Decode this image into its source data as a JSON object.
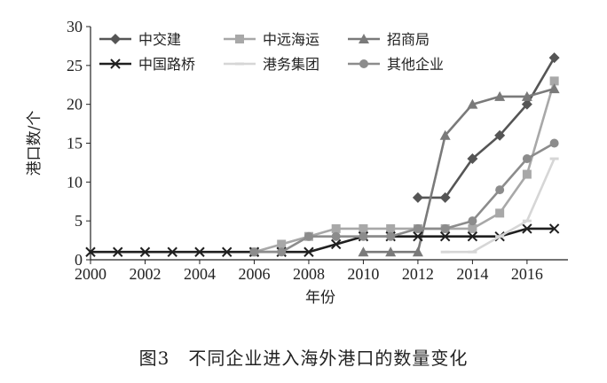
{
  "caption": "图3　不同企业进入海外港口的数量变化",
  "chart_data": {
    "type": "line",
    "xlabel": "年份",
    "ylabel": "港口数/个",
    "xlim": [
      2000,
      2017.5
    ],
    "ylim": [
      0,
      30
    ],
    "xticks": [
      2000,
      2002,
      2004,
      2006,
      2008,
      2010,
      2012,
      2014,
      2016
    ],
    "yticks": [
      0,
      5,
      10,
      15,
      20,
      25,
      30
    ],
    "grid": false,
    "legend_position": "top-left",
    "series": [
      {
        "name": "中交建",
        "color": "#555555",
        "marker": "diamond",
        "points": [
          [
            2012,
            8
          ],
          [
            2013,
            8
          ],
          [
            2014,
            13
          ],
          [
            2015,
            16
          ],
          [
            2016,
            20
          ],
          [
            2017,
            26
          ]
        ]
      },
      {
        "name": "中远海运",
        "color": "#a8a8a8",
        "marker": "square",
        "points": [
          [
            2006,
            1
          ],
          [
            2007,
            2
          ],
          [
            2008,
            3
          ],
          [
            2009,
            4
          ],
          [
            2010,
            4
          ],
          [
            2011,
            4
          ],
          [
            2012,
            4
          ],
          [
            2013,
            4
          ],
          [
            2014,
            4
          ],
          [
            2015,
            6
          ],
          [
            2016,
            11
          ],
          [
            2017,
            23
          ]
        ]
      },
      {
        "name": "招商局",
        "color": "#7a7a7a",
        "marker": "triangle",
        "points": [
          [
            2010,
            1
          ],
          [
            2011,
            1
          ],
          [
            2012,
            1
          ],
          [
            2013,
            16
          ],
          [
            2014,
            20
          ],
          [
            2015,
            21
          ],
          [
            2016,
            21
          ],
          [
            2017,
            22
          ]
        ]
      },
      {
        "name": "中国路桥",
        "color": "#1f1f1f",
        "marker": "x",
        "points": [
          [
            2000,
            1
          ],
          [
            2001,
            1
          ],
          [
            2002,
            1
          ],
          [
            2003,
            1
          ],
          [
            2004,
            1
          ],
          [
            2005,
            1
          ],
          [
            2006,
            1
          ],
          [
            2007,
            1
          ],
          [
            2008,
            1
          ],
          [
            2009,
            2
          ],
          [
            2010,
            3
          ],
          [
            2011,
            3
          ],
          [
            2012,
            3
          ],
          [
            2013,
            3
          ],
          [
            2014,
            3
          ],
          [
            2015,
            3
          ],
          [
            2016,
            4
          ],
          [
            2017,
            4
          ]
        ]
      },
      {
        "name": "港务集团",
        "color": "#d6d6d6",
        "marker": "line",
        "points": [
          [
            2013,
            1
          ],
          [
            2014,
            1
          ],
          [
            2015,
            3
          ],
          [
            2016,
            5
          ],
          [
            2017,
            13
          ]
        ]
      },
      {
        "name": "其他企业",
        "color": "#8c8c8c",
        "marker": "circle",
        "points": [
          [
            2006,
            1
          ],
          [
            2007,
            1
          ],
          [
            2008,
            3
          ],
          [
            2009,
            3
          ],
          [
            2010,
            3
          ],
          [
            2011,
            3
          ],
          [
            2012,
            4
          ],
          [
            2013,
            4
          ],
          [
            2014,
            5
          ],
          [
            2015,
            9
          ],
          [
            2016,
            13
          ],
          [
            2017,
            15
          ]
        ]
      }
    ]
  }
}
